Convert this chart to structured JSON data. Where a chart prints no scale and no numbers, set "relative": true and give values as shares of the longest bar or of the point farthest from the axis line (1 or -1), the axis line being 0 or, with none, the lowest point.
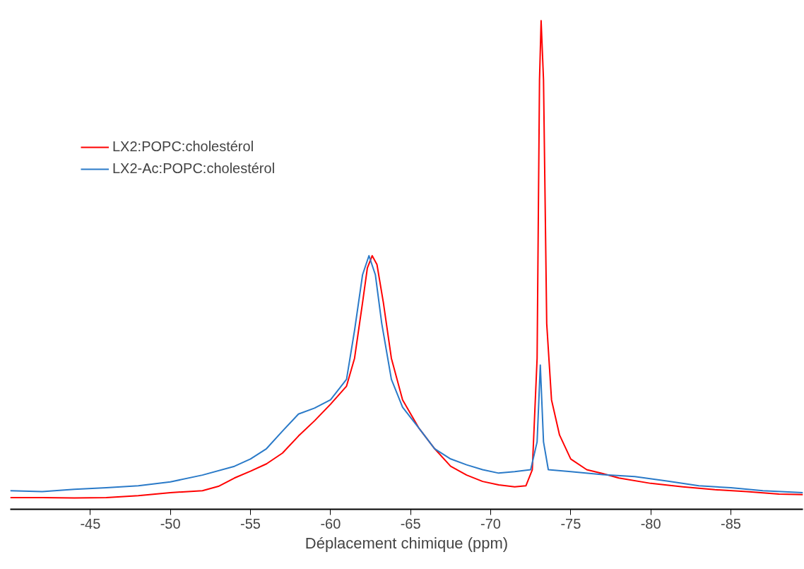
{
  "chart_data": {
    "type": "line",
    "relative": true,
    "xlabel": "Déplacement chimique (ppm)",
    "xlim": [
      -40,
      -89.5
    ],
    "xticks": [
      -45,
      -50,
      -55,
      -60,
      -65,
      -70,
      -75,
      -80,
      -85
    ],
    "legend": "top left",
    "grid": false,
    "marker": "none",
    "line_style": "solid",
    "series": [
      {
        "name": "LX2:POPC:cholestérol",
        "color": "#ff0000",
        "x": [
          -40,
          -42,
          -44,
          -46,
          -48,
          -50,
          -52,
          -53,
          -54,
          -55,
          -56,
          -57,
          -58,
          -59,
          -60,
          -61,
          -61.5,
          -62,
          -62.3,
          -62.6,
          -62.9,
          -63.3,
          -63.8,
          -64.5,
          -65.5,
          -66.5,
          -67.5,
          -68.5,
          -69.5,
          -70.5,
          -71.5,
          -72.2,
          -72.6,
          -72.9,
          -73.05,
          -73.15,
          -73.3,
          -73.5,
          -73.8,
          -74.3,
          -75,
          -76,
          -77,
          -78,
          -80,
          -82,
          -84,
          -86,
          -88,
          -89.5
        ],
        "values": [
          0.024,
          0.024,
          0.023,
          0.024,
          0.028,
          0.034,
          0.038,
          0.047,
          0.064,
          0.078,
          0.093,
          0.115,
          0.15,
          0.181,
          0.215,
          0.252,
          0.309,
          0.423,
          0.494,
          0.519,
          0.501,
          0.423,
          0.309,
          0.224,
          0.167,
          0.124,
          0.088,
          0.07,
          0.057,
          0.05,
          0.046,
          0.048,
          0.081,
          0.309,
          0.879,
          1.0,
          0.879,
          0.38,
          0.224,
          0.152,
          0.103,
          0.081,
          0.073,
          0.064,
          0.053,
          0.046,
          0.04,
          0.036,
          0.031,
          0.03
        ]
      },
      {
        "name": "LX2-Ac:POPC:cholestérol",
        "color": "#2a7ac8",
        "x": [
          -40,
          -42,
          -44,
          -46,
          -48,
          -50,
          -52,
          -54,
          -55,
          -56,
          -57,
          -58,
          -59,
          -60,
          -61,
          -61.5,
          -62,
          -62.4,
          -62.8,
          -63.2,
          -63.8,
          -64.5,
          -65.5,
          -66.5,
          -67.5,
          -68.5,
          -69.5,
          -70.5,
          -71.5,
          -72.5,
          -72.9,
          -73.1,
          -73.3,
          -73.6,
          -75,
          -77,
          -79,
          -81,
          -83,
          -85,
          -87,
          -89.5
        ],
        "values": [
          0.038,
          0.036,
          0.041,
          0.044,
          0.048,
          0.056,
          0.07,
          0.088,
          0.103,
          0.124,
          0.16,
          0.195,
          0.207,
          0.224,
          0.266,
          0.366,
          0.48,
          0.519,
          0.48,
          0.38,
          0.266,
          0.209,
          0.167,
          0.124,
          0.103,
          0.091,
          0.081,
          0.074,
          0.077,
          0.081,
          0.138,
          0.295,
          0.138,
          0.081,
          0.077,
          0.071,
          0.067,
          0.058,
          0.048,
          0.044,
          0.038,
          0.034
        ]
      }
    ]
  }
}
